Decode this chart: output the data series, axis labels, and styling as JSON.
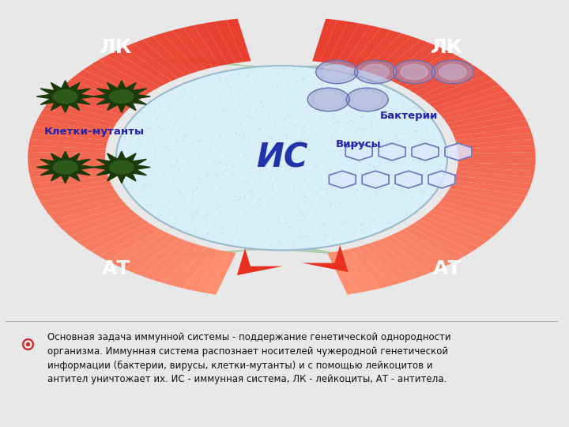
{
  "bg_color": "#e8e8e8",
  "diagram_bg": "#ffffff",
  "center_label": "ИС",
  "arrow_left_top_label": "ЛК",
  "arrow_left_bot_label": "АТ",
  "arrow_right_top_label": "ЛК",
  "arrow_right_bot_label": "АТ",
  "left_label": "Клетки-мутанты",
  "right_top_label": "Бактерии",
  "right_bot_label": "Вирусы",
  "bottom_text": "Основная задача иммунной системы - поддержание генетической однородности\nорганизма. Иммунная система распознает носителей чужеродной генетической\nинформации (бактерии, вирусы, клетки-мутанты) и с помощью лейкоцитов и\nантител уничтожает их. ИС - иммунная система, ЛК - лейкоциты, АТ - антитела.",
  "red_color1": "#e83020",
  "red_color2": "#ff8866",
  "green_color": "#a0c8a0",
  "IS_text_color": "#2233aa",
  "label_color": "#2222aa",
  "text_color": "#111111",
  "bullet_color": "#cc3333"
}
